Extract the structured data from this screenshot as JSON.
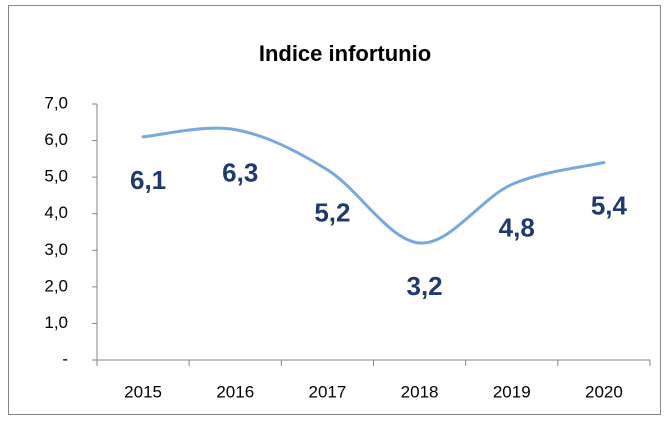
{
  "chart_data": {
    "type": "line",
    "title": "Indice infortunio",
    "categories": [
      "2015",
      "2016",
      "2017",
      "2018",
      "2019",
      "2020"
    ],
    "values": [
      6.1,
      6.3,
      5.2,
      3.2,
      4.8,
      5.4
    ],
    "value_labels": [
      "6,1",
      "6,3",
      "5,2",
      "3,2",
      "4,8",
      "5,4"
    ],
    "color": "#78a9dc",
    "smooth": true,
    "ylim": [
      0,
      7
    ],
    "yticks": [
      {
        "value": 0,
        "label": "-"
      },
      {
        "value": 1,
        "label": "1,0"
      },
      {
        "value": 2,
        "label": "2,0"
      },
      {
        "value": 3,
        "label": "3,0"
      },
      {
        "value": 4,
        "label": "4,0"
      },
      {
        "value": 5,
        "label": "5,0"
      },
      {
        "value": 6,
        "label": "6,0"
      },
      {
        "value": 7,
        "label": "7,0"
      }
    ],
    "grid": false
  }
}
